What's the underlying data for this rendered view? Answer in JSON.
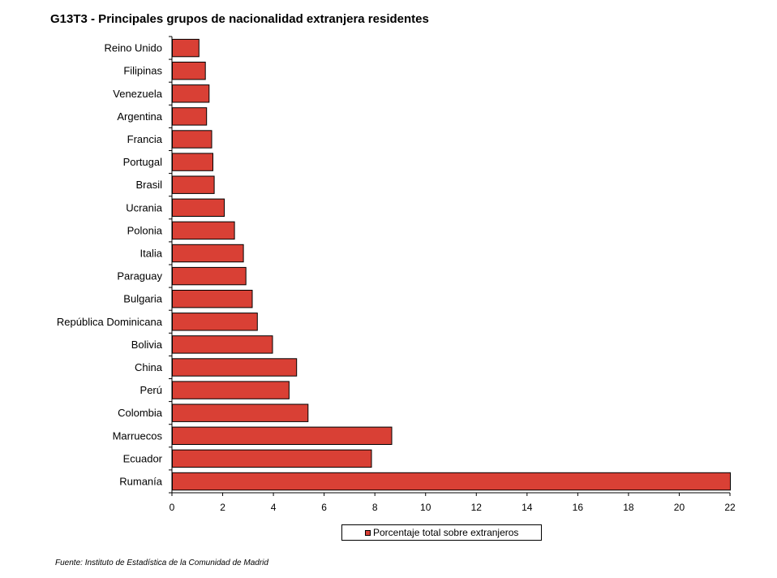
{
  "chart_title": "G13T3 - Principales grupos de nacionalidad extranjera residentes",
  "source": "Fuente: Instituto de Estadística de la Comunidad de Madrid",
  "colors": {
    "bar_fill": "#d94035",
    "bar_stroke": "#000000"
  },
  "chart_data": {
    "type": "bar",
    "orientation": "horizontal",
    "title": "G13T3 - Principales grupos de nacionalidad extranjera residentes",
    "categories": [
      "Reino Unido",
      "Filipinas",
      "Venezuela",
      "Argentina",
      "Francia",
      "Portugal",
      "Brasil",
      "Ucrania",
      "Polonia",
      "Italia",
      "Paraguay",
      "Bulgaria",
      "República Dominicana",
      "Bolivia",
      "China",
      "Perú",
      "Colombia",
      "Marruecos",
      "Ecuador",
      "Rumanía"
    ],
    "series": [
      {
        "name": "Porcentaje total sobre extranjeros",
        "values": [
          1.05,
          1.3,
          1.45,
          1.35,
          1.55,
          1.6,
          1.65,
          2.05,
          2.45,
          2.8,
          2.9,
          3.15,
          3.35,
          3.95,
          4.9,
          4.6,
          5.35,
          8.65,
          7.85,
          22.0
        ]
      }
    ],
    "xlim": [
      0,
      22
    ],
    "xticks": [
      0,
      2,
      4,
      6,
      8,
      10,
      12,
      14,
      16,
      18,
      20,
      22
    ],
    "grid": false,
    "legend_position": "bottom"
  }
}
